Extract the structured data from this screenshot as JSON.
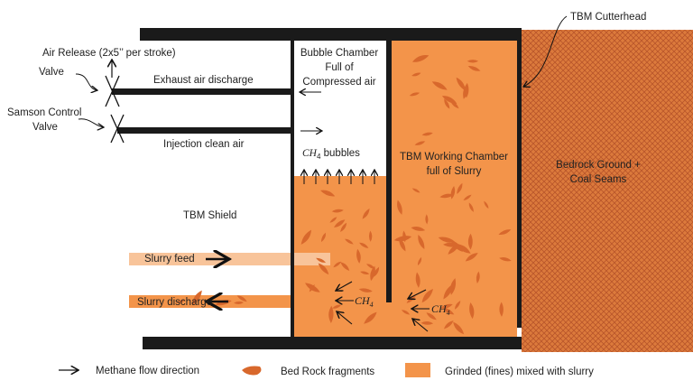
{
  "labels": {
    "cutterhead": "TBM Cutterhead",
    "air_release": "Air Release (2x5’’ per stroke)",
    "valve": "Valve",
    "exhaust": "Exhaust air discharge",
    "samson_1": "Samson Control",
    "samson_2": "Valve",
    "injection": "Injection clean air",
    "bubble_1": "Bubble  Chamber",
    "bubble_2": "Full of",
    "bubble_3": "Compressed air",
    "ch4_bubbles_sym": "CH",
    "ch4_sub": "4",
    "ch4_bubbles_text": " bubbles",
    "working_1": "TBM Working Chamber",
    "working_2": "full of Slurry",
    "bedrock_1": "Bedrock Ground +",
    "bedrock_2": "Coal Seams",
    "shield": "TBM Shield",
    "slurry_feed": "Slurry feed",
    "slurry_discharge": "Slurry discharge",
    "ch4_a": "CH",
    "ch4_b": "CH"
  },
  "legend": {
    "methane": "Methane flow direction",
    "fragments": "Bed Rock fragments",
    "fines": "Grinded (fines) mixed with slurry"
  },
  "colors": {
    "slurry": "#f3944a",
    "slurry_feed": "#f8c49a",
    "fragment": "#d8682c",
    "bedrock": "#d9773a",
    "steel": "#1a1a1a"
  }
}
